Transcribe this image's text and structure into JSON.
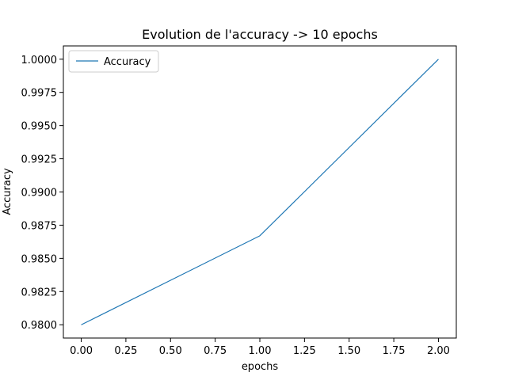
{
  "chart_data": {
    "type": "line",
    "title": "Evolution de l'accuracy -> 10 epochs",
    "xlabel": "epochs",
    "ylabel": "Accuracy",
    "xlim": [
      -0.1,
      2.1
    ],
    "ylim": [
      0.979,
      1.001
    ],
    "x_ticks": [
      0.0,
      0.25,
      0.5,
      0.75,
      1.0,
      1.25,
      1.5,
      1.75,
      2.0
    ],
    "x_tick_labels": [
      "0.00",
      "0.25",
      "0.50",
      "0.75",
      "1.00",
      "1.25",
      "1.50",
      "1.75",
      "2.00"
    ],
    "y_ticks": [
      0.98,
      0.9825,
      0.985,
      0.9875,
      0.99,
      0.9925,
      0.995,
      0.9975,
      1.0
    ],
    "y_tick_labels": [
      "0.9800",
      "0.9825",
      "0.9850",
      "0.9875",
      "0.9900",
      "0.9925",
      "0.9950",
      "0.9975",
      "1.0000"
    ],
    "grid": false,
    "legend_position": "top-left",
    "series": [
      {
        "name": "Accuracy",
        "color": "#1f77b4",
        "x": [
          0,
          1,
          2
        ],
        "y": [
          0.98,
          0.9867,
          1.0
        ]
      }
    ]
  }
}
